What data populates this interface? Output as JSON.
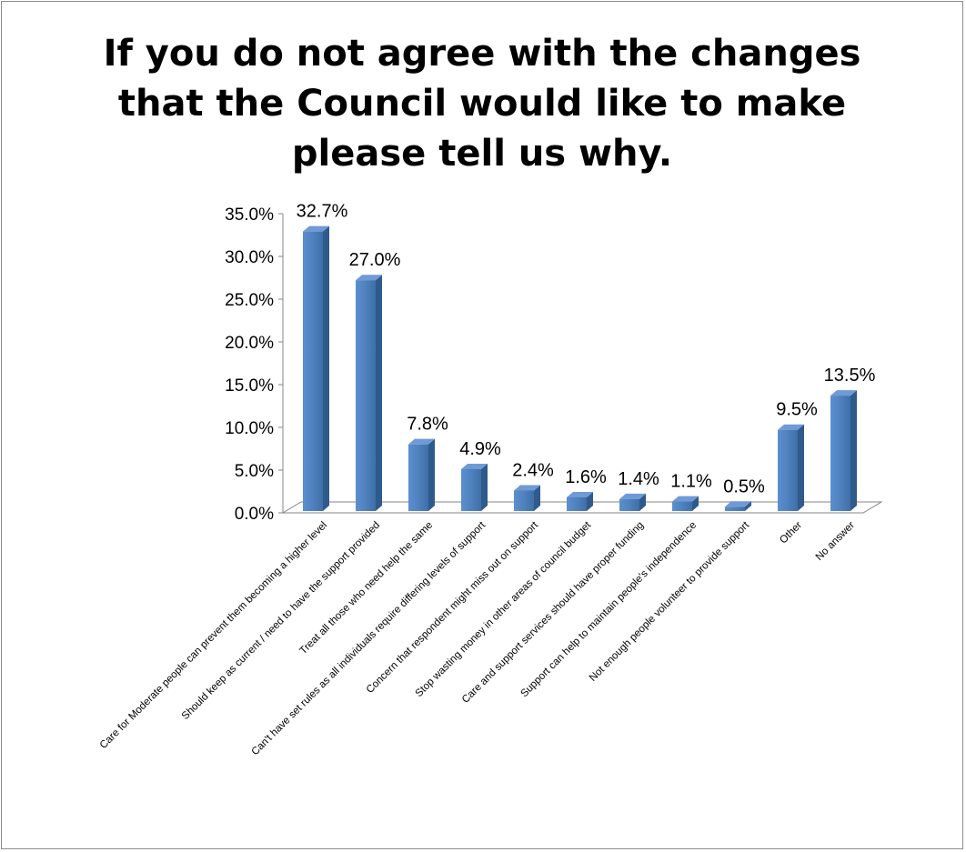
{
  "chart_data": {
    "type": "bar",
    "title": "If you do not agree with the changes that the Council would like to make please tell us why.",
    "categories": [
      "Care for Moderate people can prevent them becoming a higher level",
      "Should keep as current / need to have the support provided",
      "Treat all those who need help the same",
      "Can't have set rules as all individuals require differing levels of support",
      "Concern that respondent might miss out on support",
      "Stop wasting money in other areas of council budget",
      "Care and support services should have proper funding",
      "Support can help to maintain people's independence",
      "Not enough people volunteer to provide support",
      "Other",
      "No answer"
    ],
    "values": [
      32.7,
      27.0,
      7.8,
      4.9,
      2.4,
      1.6,
      1.4,
      1.1,
      0.5,
      9.5,
      13.5
    ],
    "value_labels": [
      "32.7%",
      "27.0%",
      "7.8%",
      "4.9%",
      "2.4%",
      "1.6%",
      "1.4%",
      "1.1%",
      "0.5%",
      "9.5%",
      "13.5%"
    ],
    "yticks": [
      "0.0%",
      "5.0%",
      "10.0%",
      "15.0%",
      "20.0%",
      "25.0%",
      "30.0%",
      "35.0%"
    ],
    "ylim": [
      0,
      35
    ],
    "xlabel": "",
    "ylabel": "",
    "grid": false,
    "legend": "none",
    "style": "3d-column",
    "bar_color": "#4f81bd"
  }
}
